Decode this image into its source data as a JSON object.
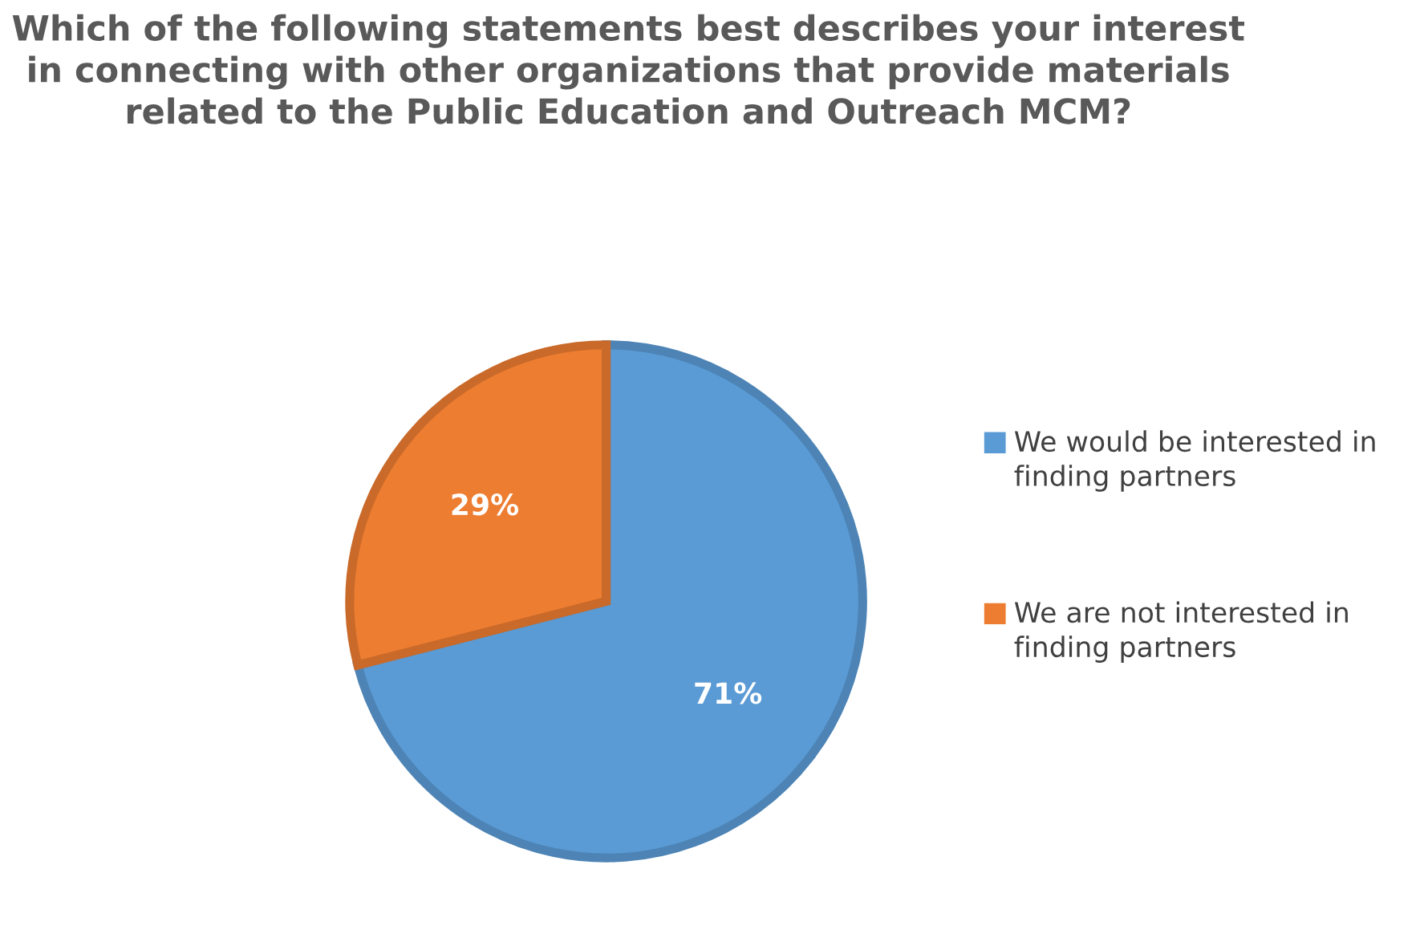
{
  "chart_data": {
    "type": "pie",
    "title": "Which of the following statements best describes your interest in connecting with other organizations that provide materials related to the Public Education and Outreach MCM?",
    "categories": [
      "We would be interested in finding partners",
      "We are not interested in finding partners"
    ],
    "values": [
      71,
      29
    ],
    "colors": [
      "#5b9bd5",
      "#ed7d31"
    ],
    "value_labels": [
      "71%",
      "29%"
    ],
    "legend": "right"
  }
}
